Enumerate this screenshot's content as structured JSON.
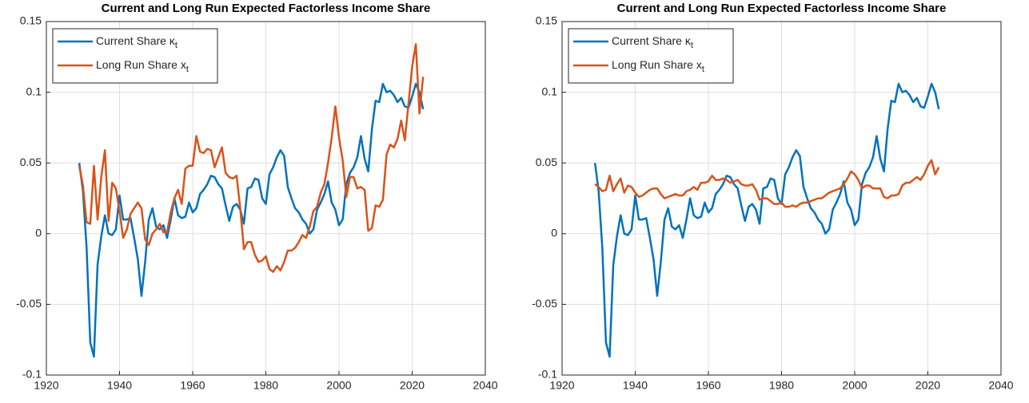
{
  "chart_data": [
    {
      "type": "line",
      "title": "Current and Long Run Expected Factorless Income Share",
      "x": [
        1929,
        1930,
        1931,
        1932,
        1933,
        1934,
        1935,
        1936,
        1937,
        1938,
        1939,
        1940,
        1941,
        1942,
        1943,
        1944,
        1945,
        1946,
        1947,
        1948,
        1949,
        1950,
        1951,
        1952,
        1953,
        1954,
        1955,
        1956,
        1957,
        1958,
        1959,
        1960,
        1961,
        1962,
        1963,
        1964,
        1965,
        1966,
        1967,
        1968,
        1969,
        1970,
        1971,
        1972,
        1973,
        1974,
        1975,
        1976,
        1977,
        1978,
        1979,
        1980,
        1981,
        1982,
        1983,
        1984,
        1985,
        1986,
        1987,
        1988,
        1989,
        1990,
        1991,
        1992,
        1993,
        1994,
        1995,
        1996,
        1997,
        1998,
        1999,
        2000,
        2001,
        2002,
        2003,
        2004,
        2005,
        2006,
        2007,
        2008,
        2009,
        2010,
        2011,
        2012,
        2013,
        2014,
        2015,
        2016,
        2017,
        2018,
        2019,
        2020,
        2021,
        2022,
        2023
      ],
      "series": [
        {
          "name": "Current Share κt",
          "color": "#0072BD",
          "values": [
            0.05,
            0.03,
            -0.01,
            -0.077,
            -0.087,
            -0.022,
            -0.002,
            0.013,
            0.0,
            -0.001,
            0.003,
            0.027,
            0.01,
            0.01,
            0.011,
            -0.003,
            -0.018,
            -0.044,
            -0.02,
            0.01,
            0.018,
            0.005,
            0.003,
            0.006,
            -0.003,
            0.01,
            0.025,
            0.013,
            0.011,
            0.012,
            0.022,
            0.015,
            0.018,
            0.028,
            0.031,
            0.035,
            0.041,
            0.04,
            0.035,
            0.032,
            0.02,
            0.009,
            0.019,
            0.021,
            0.017,
            0.007,
            0.032,
            0.033,
            0.039,
            0.038,
            0.025,
            0.021,
            0.042,
            0.047,
            0.054,
            0.059,
            0.055,
            0.033,
            0.025,
            0.018,
            0.015,
            0.01,
            0.007,
            0.0,
            0.003,
            0.017,
            0.022,
            0.028,
            0.037,
            0.022,
            0.017,
            0.006,
            0.01,
            0.035,
            0.043,
            0.047,
            0.054,
            0.069,
            0.053,
            0.044,
            0.074,
            0.094,
            0.093,
            0.106,
            0.1,
            0.101,
            0.098,
            0.093,
            0.096,
            0.09,
            0.089,
            0.097,
            0.106,
            0.1,
            0.088
          ]
        },
        {
          "name": "Long Run Share xt",
          "color": "#D95319",
          "values": [
            0.048,
            0.034,
            0.008,
            0.007,
            0.048,
            0.01,
            0.04,
            0.059,
            0.009,
            0.036,
            0.032,
            0.016,
            -0.003,
            0.003,
            0.014,
            0.018,
            0.022,
            0.018,
            -0.004,
            -0.008,
            0.0,
            0.003,
            0.007,
            0.001,
            0.001,
            0.015,
            0.025,
            0.031,
            0.021,
            0.046,
            0.048,
            0.048,
            0.069,
            0.058,
            0.057,
            0.06,
            0.059,
            0.047,
            0.054,
            0.061,
            0.043,
            0.04,
            0.039,
            0.041,
            0.018,
            -0.011,
            -0.006,
            -0.006,
            -0.015,
            -0.02,
            -0.019,
            -0.016,
            -0.025,
            -0.027,
            -0.023,
            -0.026,
            -0.02,
            -0.012,
            -0.012,
            -0.01,
            -0.006,
            -0.001,
            -0.003,
            0.005,
            0.016,
            0.019,
            0.029,
            0.035,
            0.05,
            0.068,
            0.09,
            0.068,
            0.052,
            0.026,
            0.04,
            0.04,
            0.032,
            0.033,
            0.031,
            0.002,
            0.004,
            0.02,
            0.019,
            0.024,
            0.056,
            0.063,
            0.061,
            0.067,
            0.08,
            0.066,
            0.092,
            0.118,
            0.134,
            0.085,
            0.111
          ]
        }
      ],
      "xlim": [
        1920,
        2040
      ],
      "xticks": [
        1920,
        1940,
        1960,
        1980,
        2000,
        2020,
        2040
      ],
      "ylim": [
        -0.1,
        0.15
      ],
      "yticks": [
        -0.1,
        -0.05,
        0,
        0.05,
        0.1,
        0.15
      ],
      "grid": true,
      "legend": "top-left"
    },
    {
      "type": "line",
      "title": "Current and Long Run Expected Factorless Income Share",
      "x": [
        1929,
        1930,
        1931,
        1932,
        1933,
        1934,
        1935,
        1936,
        1937,
        1938,
        1939,
        1940,
        1941,
        1942,
        1943,
        1944,
        1945,
        1946,
        1947,
        1948,
        1949,
        1950,
        1951,
        1952,
        1953,
        1954,
        1955,
        1956,
        1957,
        1958,
        1959,
        1960,
        1961,
        1962,
        1963,
        1964,
        1965,
        1966,
        1967,
        1968,
        1969,
        1970,
        1971,
        1972,
        1973,
        1974,
        1975,
        1976,
        1977,
        1978,
        1979,
        1980,
        1981,
        1982,
        1983,
        1984,
        1985,
        1986,
        1987,
        1988,
        1989,
        1990,
        1991,
        1992,
        1993,
        1994,
        1995,
        1996,
        1997,
        1998,
        1999,
        2000,
        2001,
        2002,
        2003,
        2004,
        2005,
        2006,
        2007,
        2008,
        2009,
        2010,
        2011,
        2012,
        2013,
        2014,
        2015,
        2016,
        2017,
        2018,
        2019,
        2020,
        2021,
        2022,
        2023
      ],
      "series": [
        {
          "name": "Current Share κt",
          "color": "#0072BD",
          "values": [
            0.05,
            0.03,
            -0.01,
            -0.077,
            -0.087,
            -0.022,
            -0.002,
            0.013,
            0.0,
            -0.001,
            0.003,
            0.027,
            0.01,
            0.01,
            0.011,
            -0.003,
            -0.018,
            -0.044,
            -0.02,
            0.01,
            0.018,
            0.005,
            0.003,
            0.006,
            -0.003,
            0.01,
            0.025,
            0.013,
            0.011,
            0.012,
            0.022,
            0.015,
            0.018,
            0.028,
            0.031,
            0.035,
            0.041,
            0.04,
            0.035,
            0.032,
            0.02,
            0.009,
            0.019,
            0.021,
            0.017,
            0.007,
            0.032,
            0.033,
            0.039,
            0.038,
            0.025,
            0.021,
            0.042,
            0.047,
            0.054,
            0.059,
            0.055,
            0.033,
            0.025,
            0.018,
            0.015,
            0.01,
            0.007,
            0.0,
            0.003,
            0.017,
            0.022,
            0.028,
            0.037,
            0.022,
            0.017,
            0.006,
            0.01,
            0.035,
            0.043,
            0.047,
            0.054,
            0.069,
            0.053,
            0.044,
            0.074,
            0.094,
            0.093,
            0.106,
            0.1,
            0.101,
            0.098,
            0.093,
            0.096,
            0.09,
            0.089,
            0.097,
            0.106,
            0.1,
            0.088
          ]
        },
        {
          "name": "Long Run Share xt",
          "color": "#D95319",
          "values": [
            0.035,
            0.033,
            0.03,
            0.031,
            0.041,
            0.03,
            0.035,
            0.039,
            0.029,
            0.034,
            0.033,
            0.029,
            0.026,
            0.027,
            0.029,
            0.031,
            0.032,
            0.032,
            0.028,
            0.025,
            0.026,
            0.027,
            0.028,
            0.027,
            0.027,
            0.03,
            0.031,
            0.033,
            0.031,
            0.036,
            0.036,
            0.037,
            0.041,
            0.038,
            0.038,
            0.039,
            0.038,
            0.036,
            0.037,
            0.038,
            0.035,
            0.034,
            0.034,
            0.035,
            0.031,
            0.024,
            0.025,
            0.025,
            0.023,
            0.021,
            0.021,
            0.022,
            0.019,
            0.019,
            0.02,
            0.019,
            0.021,
            0.022,
            0.022,
            0.023,
            0.024,
            0.025,
            0.025,
            0.027,
            0.029,
            0.03,
            0.031,
            0.032,
            0.035,
            0.039,
            0.044,
            0.042,
            0.038,
            0.032,
            0.034,
            0.034,
            0.032,
            0.032,
            0.032,
            0.026,
            0.025,
            0.027,
            0.027,
            0.028,
            0.034,
            0.036,
            0.036,
            0.038,
            0.04,
            0.038,
            0.042,
            0.048,
            0.052,
            0.042,
            0.047
          ]
        }
      ],
      "xlim": [
        1920,
        2040
      ],
      "xticks": [
        1920,
        1940,
        1960,
        1980,
        2000,
        2020,
        2040
      ],
      "ylim": [
        -0.1,
        0.15
      ],
      "yticks": [
        -0.1,
        -0.05,
        0,
        0.05,
        0.1,
        0.15
      ],
      "grid": true,
      "legend": "top-left"
    }
  ]
}
